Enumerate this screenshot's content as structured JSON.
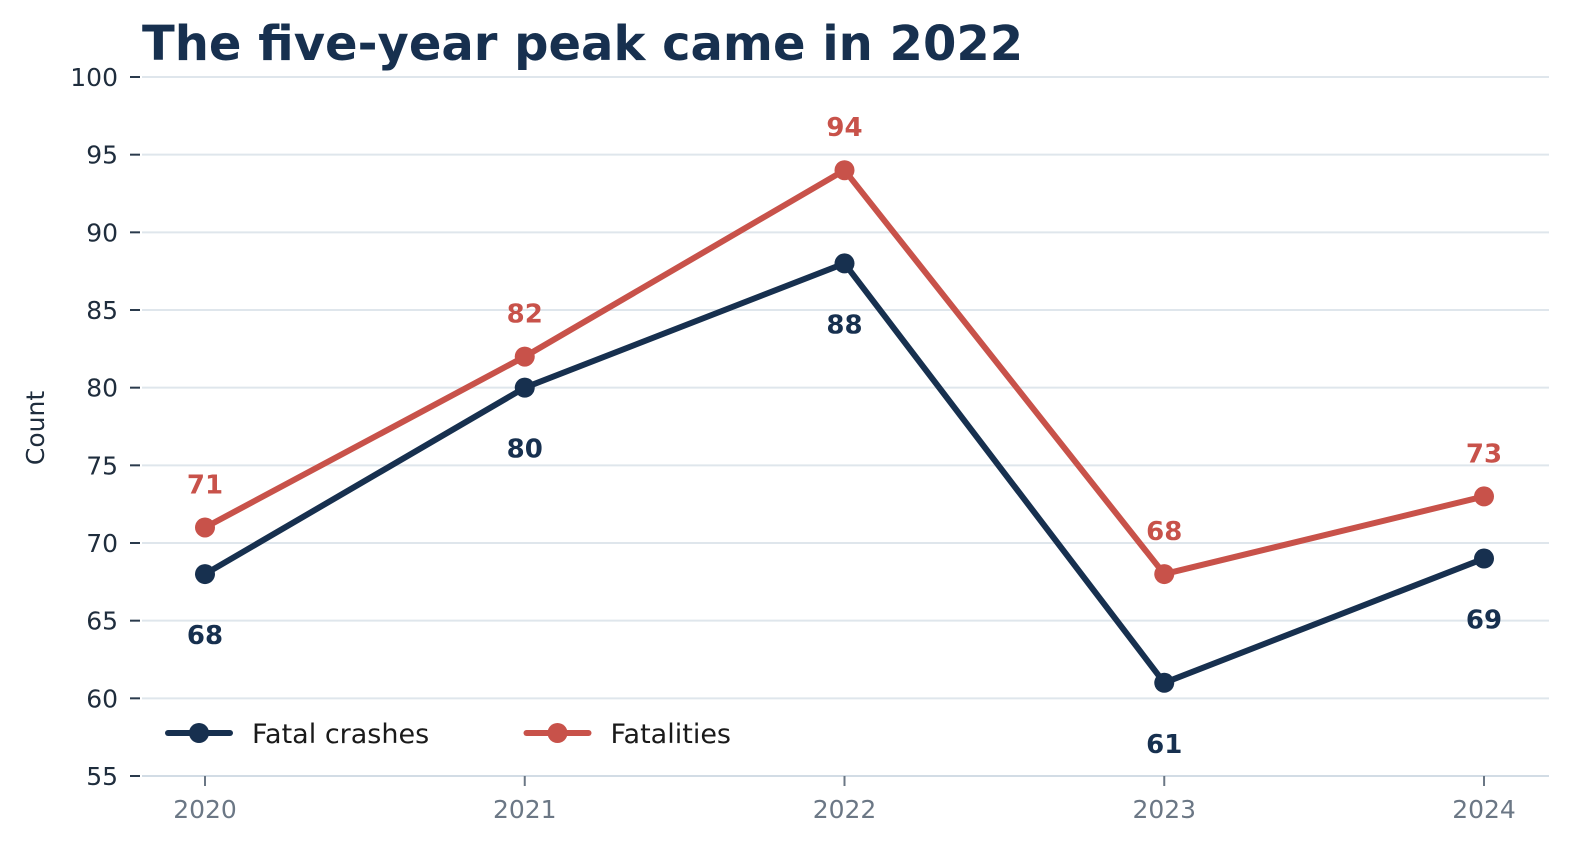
{
  "chart_data": {
    "type": "line",
    "title": "The five-year peak came in 2022",
    "xlabel": "",
    "ylabel": "Count",
    "x": [
      "2020",
      "2021",
      "2022",
      "2023",
      "2024"
    ],
    "ylim": [
      55,
      100
    ],
    "yticks": [
      55,
      60,
      65,
      70,
      75,
      80,
      85,
      90,
      95,
      100
    ],
    "grid": "horizontal",
    "legend_position": "bottom-left",
    "series": [
      {
        "name": "Fatal crashes",
        "values": [
          68,
          80,
          88,
          61,
          69
        ],
        "color": "#17304f",
        "label_position": "below"
      },
      {
        "name": "Fatalities",
        "values": [
          71,
          82,
          94,
          68,
          73
        ],
        "color": "#c8524a",
        "label_position": "above"
      }
    ],
    "title_color": "#17304f",
    "grid_color": "#dfe6ec"
  }
}
